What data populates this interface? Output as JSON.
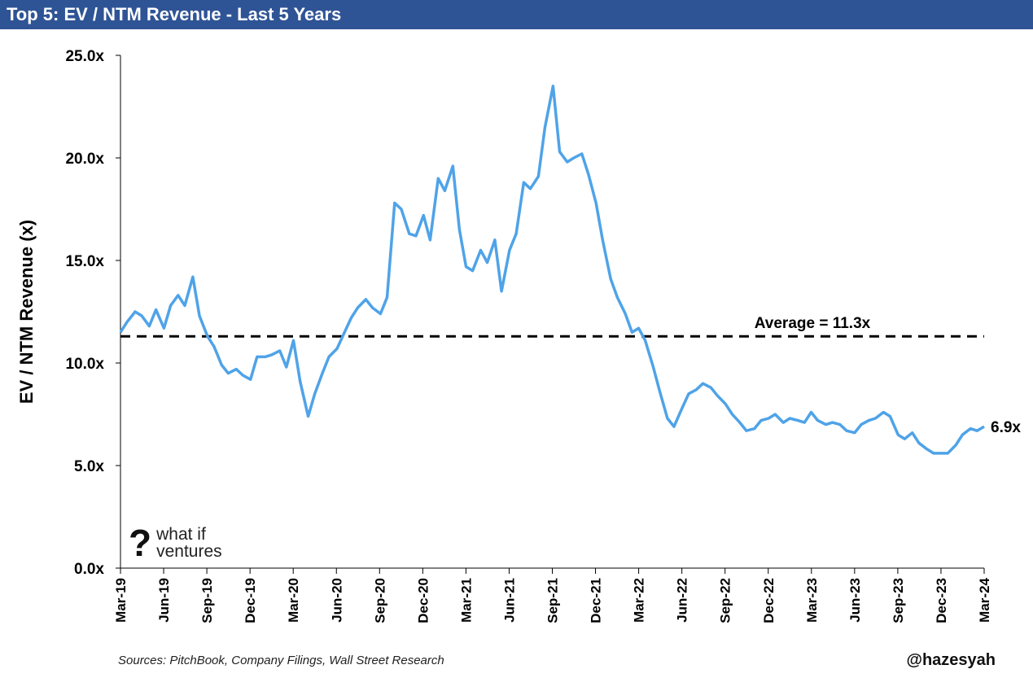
{
  "header": {
    "title": "Top 5: EV / NTM Revenue - Last 5 Years"
  },
  "logo": {
    "symbol": "?",
    "line1": "what if",
    "line2": "ventures"
  },
  "footer": {
    "sources": "Sources: PitchBook, Company Filings, Wall Street Research",
    "handle": "@hazesyah"
  },
  "chart_data": {
    "type": "line",
    "title": "Top 5: EV / NTM Revenue - Last 5 Years",
    "ylabel": "EV / NTM Revenue (x)",
    "xlabel": "",
    "ylim": [
      0,
      25
    ],
    "yticks": [
      0,
      5,
      10,
      15,
      20,
      25
    ],
    "ytick_labels": [
      "0.0x",
      "5.0x",
      "10.0x",
      "15.0x",
      "20.0x",
      "25.0x"
    ],
    "xlim": [
      "2019-03-01",
      "2024-03-01"
    ],
    "xtick_labels": [
      "Mar-19",
      "Jun-19",
      "Sep-19",
      "Dec-19",
      "Mar-20",
      "Jun-20",
      "Sep-20",
      "Dec-20",
      "Mar-21",
      "Jun-21",
      "Sep-21",
      "Dec-21",
      "Mar-22",
      "Jun-22",
      "Sep-22",
      "Dec-22",
      "Mar-23",
      "Jun-23",
      "Sep-23",
      "Dec-23",
      "Mar-24"
    ],
    "grid": false,
    "series": [
      {
        "color": "#4fa3e8",
        "x": [
          "2019-03-01",
          "2019-03-15",
          "2019-04-01",
          "2019-04-15",
          "2019-05-01",
          "2019-05-15",
          "2019-06-01",
          "2019-06-15",
          "2019-07-01",
          "2019-07-15",
          "2019-08-01",
          "2019-08-15",
          "2019-09-01",
          "2019-09-15",
          "2019-10-01",
          "2019-10-15",
          "2019-11-01",
          "2019-11-15",
          "2019-12-01",
          "2019-12-15",
          "2020-01-01",
          "2020-01-15",
          "2020-02-01",
          "2020-02-15",
          "2020-03-01",
          "2020-03-15",
          "2020-04-01",
          "2020-04-15",
          "2020-05-01",
          "2020-05-15",
          "2020-06-01",
          "2020-06-15",
          "2020-07-01",
          "2020-07-15",
          "2020-08-01",
          "2020-08-15",
          "2020-09-01",
          "2020-09-15",
          "2020-10-01",
          "2020-10-15",
          "2020-11-01",
          "2020-11-15",
          "2020-12-01",
          "2020-12-15",
          "2021-01-01",
          "2021-01-15",
          "2021-02-01",
          "2021-02-15",
          "2021-03-01",
          "2021-03-15",
          "2021-04-01",
          "2021-04-15",
          "2021-05-01",
          "2021-05-15",
          "2021-06-01",
          "2021-06-15",
          "2021-07-01",
          "2021-07-15",
          "2021-08-01",
          "2021-08-15",
          "2021-09-01",
          "2021-09-15",
          "2021-10-01",
          "2021-10-15",
          "2021-11-01",
          "2021-11-15",
          "2021-12-01",
          "2021-12-15",
          "2022-01-01",
          "2022-01-15",
          "2022-02-01",
          "2022-02-15",
          "2022-03-01",
          "2022-03-15",
          "2022-04-01",
          "2022-04-15",
          "2022-05-01",
          "2022-05-15",
          "2022-06-01",
          "2022-06-15",
          "2022-07-01",
          "2022-07-15",
          "2022-08-01",
          "2022-08-15",
          "2022-09-01",
          "2022-09-15",
          "2022-10-01",
          "2022-10-15",
          "2022-11-01",
          "2022-11-15",
          "2022-12-01",
          "2022-12-15",
          "2023-01-01",
          "2023-01-15",
          "2023-02-01",
          "2023-02-15",
          "2023-03-01",
          "2023-03-15",
          "2023-04-01",
          "2023-04-15",
          "2023-05-01",
          "2023-05-15",
          "2023-06-01",
          "2023-06-15",
          "2023-07-01",
          "2023-07-15",
          "2023-08-01",
          "2023-08-15",
          "2023-09-01",
          "2023-09-15",
          "2023-10-01",
          "2023-10-15",
          "2023-11-01",
          "2023-11-15",
          "2023-12-01",
          "2023-12-15",
          "2024-01-01",
          "2024-01-15",
          "2024-02-01",
          "2024-02-15",
          "2024-03-01"
        ],
        "values": [
          11.5,
          12.0,
          12.5,
          12.3,
          11.8,
          12.6,
          11.7,
          12.8,
          13.3,
          12.8,
          14.2,
          12.3,
          11.3,
          10.8,
          9.9,
          9.5,
          9.7,
          9.4,
          9.2,
          10.3,
          10.3,
          10.4,
          10.6,
          9.8,
          11.1,
          9.1,
          7.4,
          8.5,
          9.5,
          10.3,
          10.7,
          11.4,
          12.2,
          12.7,
          13.1,
          12.7,
          12.4,
          13.2,
          17.8,
          17.5,
          16.3,
          16.2,
          17.2,
          16.0,
          19.0,
          18.4,
          19.6,
          16.5,
          14.7,
          14.5,
          15.5,
          14.9,
          16.0,
          13.5,
          15.5,
          16.3,
          18.8,
          18.5,
          19.1,
          21.5,
          23.5,
          20.3,
          19.8,
          20.0,
          20.2,
          19.2,
          17.8,
          16.0,
          14.1,
          13.2,
          12.4,
          11.5,
          11.7,
          11.1,
          9.8,
          8.6,
          7.3,
          6.9,
          7.8,
          8.5,
          8.7,
          9.0,
          8.8,
          8.4,
          8.0,
          7.5,
          7.1,
          6.7,
          6.8,
          7.2,
          7.3,
          7.5,
          7.1,
          7.3,
          7.2,
          7.1,
          7.6,
          7.2,
          7.0,
          7.1,
          7.0,
          6.7,
          6.6,
          7.0,
          7.2,
          7.3,
          7.6,
          7.4,
          6.5,
          6.3,
          6.6,
          6.1,
          5.8,
          5.6,
          5.6,
          5.6,
          6.0,
          6.5,
          6.8,
          6.7,
          6.9
        ]
      }
    ],
    "average": {
      "value": 11.3,
      "label": "Average = 11.3x"
    },
    "end_label": "6.9x"
  }
}
